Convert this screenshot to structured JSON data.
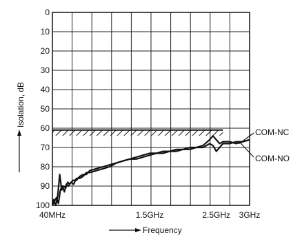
{
  "chart_data": {
    "type": "line",
    "title": "",
    "xlabel": "Frequency",
    "ylabel": "Isolation, dB",
    "xlim": [
      0.04,
      3.0
    ],
    "ylim": [
      100,
      0
    ],
    "grid": true,
    "y_ticks": [
      "0",
      "10",
      "20",
      "30",
      "40",
      "50",
      "60",
      "70",
      "80",
      "90",
      "100"
    ],
    "x_ticks": [
      {
        "value": 0.04,
        "label": "40MHz"
      },
      {
        "value": 1.5,
        "label": "1.5GHz"
      },
      {
        "value": 2.5,
        "label": "2.5GHz"
      },
      {
        "value": 3.0,
        "label": "3GHz"
      }
    ],
    "spec_limit": {
      "y": 61,
      "x_start": 0.04,
      "x_end": 2.6
    },
    "series": [
      {
        "name": "COM-NC",
        "x": [
          0.04,
          0.06,
          0.09,
          0.12,
          0.15,
          0.18,
          0.21,
          0.24,
          0.27,
          0.3,
          0.35,
          0.4,
          0.45,
          0.5,
          0.55,
          0.6,
          0.7,
          0.8,
          0.9,
          1.0,
          1.1,
          1.2,
          1.3,
          1.4,
          1.5,
          1.6,
          1.7,
          1.8,
          1.9,
          2.0,
          2.1,
          2.2,
          2.3,
          2.4,
          2.45,
          2.5,
          2.55,
          2.6,
          2.7,
          2.8,
          2.9,
          3.0
        ],
        "values": [
          100,
          97,
          100,
          95,
          84,
          92,
          90,
          91,
          88,
          89,
          87,
          87,
          85,
          84,
          84,
          82,
          81,
          80,
          79,
          78,
          77,
          76,
          75,
          74,
          73,
          73,
          72,
          72,
          71,
          71,
          70,
          70,
          69,
          66,
          64,
          66,
          68,
          67,
          67,
          68,
          67,
          66
        ]
      },
      {
        "name": "COM-NO",
        "x": [
          0.04,
          0.07,
          0.1,
          0.13,
          0.16,
          0.19,
          0.22,
          0.25,
          0.28,
          0.32,
          0.36,
          0.4,
          0.45,
          0.5,
          0.55,
          0.6,
          0.7,
          0.8,
          0.9,
          1.0,
          1.1,
          1.2,
          1.3,
          1.4,
          1.5,
          1.6,
          1.7,
          1.8,
          1.9,
          2.0,
          2.1,
          2.2,
          2.3,
          2.4,
          2.45,
          2.5,
          2.55,
          2.6,
          2.7,
          2.8,
          2.9,
          3.0
        ],
        "values": [
          100,
          98,
          96,
          99,
          92,
          90,
          93,
          89,
          90,
          88,
          89,
          86,
          86,
          85,
          83,
          83,
          82,
          81,
          80,
          78,
          77,
          76,
          76,
          75,
          74,
          73,
          73,
          72,
          72,
          71,
          71,
          70,
          70,
          68,
          69,
          72,
          70,
          68,
          68,
          67,
          67,
          66
        ]
      }
    ]
  }
}
